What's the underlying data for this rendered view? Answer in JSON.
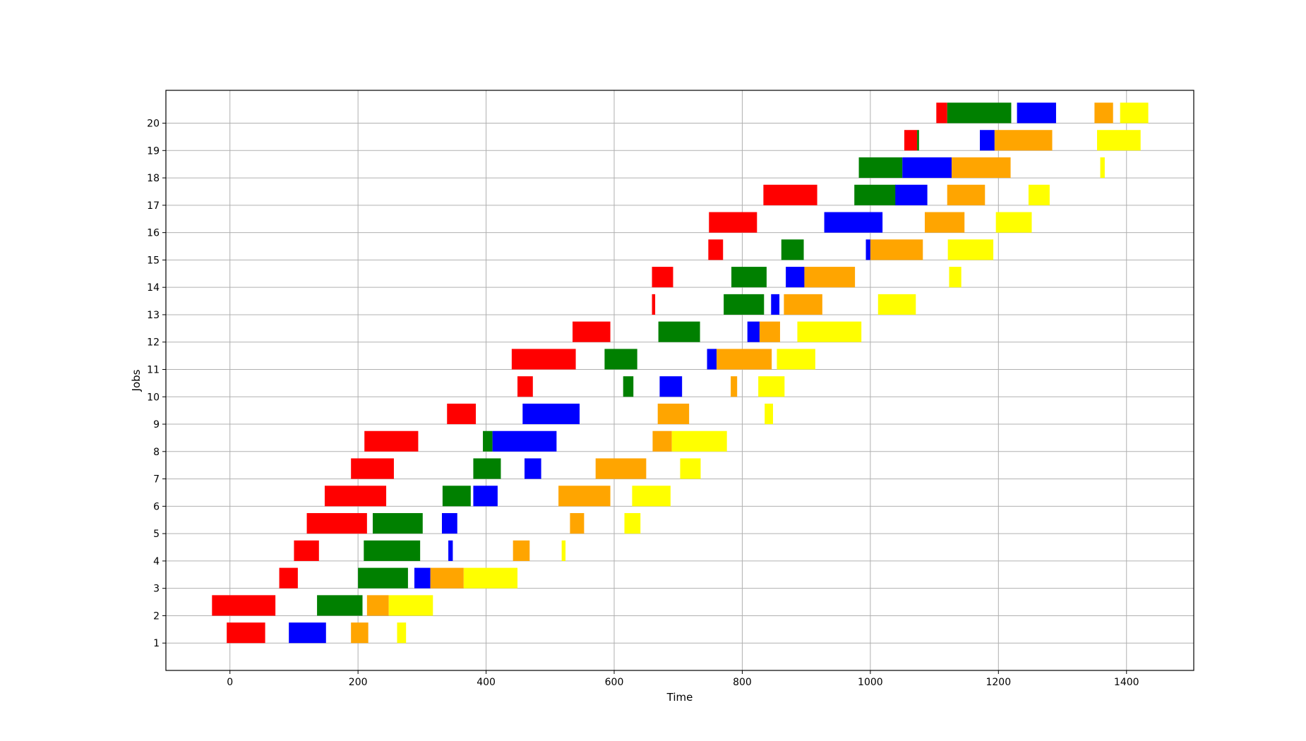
{
  "chart_data": {
    "type": "gantt",
    "title": "",
    "xlabel": "Time",
    "ylabel": "Jobs",
    "xlim": [
      -100,
      1505
    ],
    "ylim": [
      0,
      21.2
    ],
    "xticks": [
      0,
      200,
      400,
      600,
      800,
      1000,
      1200,
      1400
    ],
    "yticks": [
      1,
      2,
      3,
      4,
      5,
      6,
      7,
      8,
      9,
      10,
      11,
      12,
      13,
      14,
      15,
      16,
      17,
      18,
      19,
      20
    ],
    "grid": true,
    "legend": "none",
    "bar_height": 0.75,
    "bar_offset": 0.375,
    "colors": {
      "red": "#ff0000",
      "green": "#008000",
      "blue": "#0000ff",
      "orange": "#ffa500",
      "yellow": "#ffff00"
    },
    "series": [
      {
        "color": "red",
        "tasks": [
          {
            "job": 1,
            "start": -5,
            "end": 55
          },
          {
            "job": 2,
            "start": -28,
            "end": 71
          },
          {
            "job": 3,
            "start": 77,
            "end": 106
          },
          {
            "job": 4,
            "start": 100,
            "end": 139
          },
          {
            "job": 5,
            "start": 120,
            "end": 214
          },
          {
            "job": 6,
            "start": 148,
            "end": 244
          },
          {
            "job": 7,
            "start": 189,
            "end": 256
          },
          {
            "job": 8,
            "start": 210,
            "end": 294
          },
          {
            "job": 9,
            "start": 339,
            "end": 384
          },
          {
            "job": 10,
            "start": 449,
            "end": 473
          },
          {
            "job": 11,
            "start": 440,
            "end": 540
          },
          {
            "job": 12,
            "start": 535,
            "end": 594
          },
          {
            "job": 13,
            "start": 659,
            "end": 664
          },
          {
            "job": 14,
            "start": 659,
            "end": 692
          },
          {
            "job": 15,
            "start": 747,
            "end": 770
          },
          {
            "job": 16,
            "start": 748,
            "end": 823
          },
          {
            "job": 17,
            "start": 833,
            "end": 917
          },
          {
            "job": 19,
            "start": 1053,
            "end": 1073
          },
          {
            "job": 20,
            "start": 1103,
            "end": 1120
          }
        ]
      },
      {
        "color": "green",
        "tasks": [
          {
            "job": 2,
            "start": 136,
            "end": 207
          },
          {
            "job": 3,
            "start": 200,
            "end": 278
          },
          {
            "job": 4,
            "start": 209,
            "end": 297
          },
          {
            "job": 5,
            "start": 223,
            "end": 301
          },
          {
            "job": 6,
            "start": 332,
            "end": 376
          },
          {
            "job": 7,
            "start": 380,
            "end": 423
          },
          {
            "job": 8,
            "start": 395,
            "end": 410
          },
          {
            "job": 10,
            "start": 614,
            "end": 630
          },
          {
            "job": 11,
            "start": 585,
            "end": 636
          },
          {
            "job": 12,
            "start": 669,
            "end": 734
          },
          {
            "job": 13,
            "start": 771,
            "end": 834
          },
          {
            "job": 14,
            "start": 783,
            "end": 838
          },
          {
            "job": 15,
            "start": 861,
            "end": 896
          },
          {
            "job": 17,
            "start": 975,
            "end": 1040
          },
          {
            "job": 18,
            "start": 982,
            "end": 1050
          },
          {
            "job": 19,
            "start": 1073,
            "end": 1076
          },
          {
            "job": 20,
            "start": 1120,
            "end": 1220
          }
        ]
      },
      {
        "color": "blue",
        "tasks": [
          {
            "job": 1,
            "start": 92,
            "end": 150
          },
          {
            "job": 3,
            "start": 288,
            "end": 313
          },
          {
            "job": 4,
            "start": 341,
            "end": 348
          },
          {
            "job": 5,
            "start": 331,
            "end": 355
          },
          {
            "job": 6,
            "start": 380,
            "end": 418
          },
          {
            "job": 7,
            "start": 460,
            "end": 486
          },
          {
            "job": 8,
            "start": 410,
            "end": 510
          },
          {
            "job": 9,
            "start": 457,
            "end": 546
          },
          {
            "job": 10,
            "start": 671,
            "end": 706
          },
          {
            "job": 11,
            "start": 745,
            "end": 760
          },
          {
            "job": 12,
            "start": 808,
            "end": 827
          },
          {
            "job": 13,
            "start": 845,
            "end": 858
          },
          {
            "job": 14,
            "start": 868,
            "end": 897
          },
          {
            "job": 15,
            "start": 993,
            "end": 1000
          },
          {
            "job": 16,
            "start": 928,
            "end": 1019
          },
          {
            "job": 17,
            "start": 1039,
            "end": 1089
          },
          {
            "job": 18,
            "start": 1050,
            "end": 1127
          },
          {
            "job": 19,
            "start": 1171,
            "end": 1194
          },
          {
            "job": 20,
            "start": 1229,
            "end": 1290
          }
        ]
      },
      {
        "color": "orange",
        "tasks": [
          {
            "job": 1,
            "start": 189,
            "end": 216
          },
          {
            "job": 2,
            "start": 214,
            "end": 248
          },
          {
            "job": 3,
            "start": 313,
            "end": 365
          },
          {
            "job": 4,
            "start": 442,
            "end": 468
          },
          {
            "job": 5,
            "start": 531,
            "end": 553
          },
          {
            "job": 6,
            "start": 513,
            "end": 594
          },
          {
            "job": 7,
            "start": 571,
            "end": 650
          },
          {
            "job": 8,
            "start": 660,
            "end": 690
          },
          {
            "job": 9,
            "start": 668,
            "end": 717
          },
          {
            "job": 10,
            "start": 782,
            "end": 792
          },
          {
            "job": 11,
            "start": 760,
            "end": 846
          },
          {
            "job": 12,
            "start": 827,
            "end": 859
          },
          {
            "job": 13,
            "start": 865,
            "end": 925
          },
          {
            "job": 14,
            "start": 897,
            "end": 976
          },
          {
            "job": 15,
            "start": 1000,
            "end": 1082
          },
          {
            "job": 16,
            "start": 1085,
            "end": 1147
          },
          {
            "job": 17,
            "start": 1120,
            "end": 1179
          },
          {
            "job": 18,
            "start": 1127,
            "end": 1219
          },
          {
            "job": 19,
            "start": 1194,
            "end": 1284
          },
          {
            "job": 20,
            "start": 1350,
            "end": 1379
          }
        ]
      },
      {
        "color": "yellow",
        "tasks": [
          {
            "job": 1,
            "start": 261,
            "end": 275
          },
          {
            "job": 2,
            "start": 248,
            "end": 317
          },
          {
            "job": 3,
            "start": 365,
            "end": 449
          },
          {
            "job": 4,
            "start": 518,
            "end": 524
          },
          {
            "job": 5,
            "start": 616,
            "end": 641
          },
          {
            "job": 6,
            "start": 628,
            "end": 688
          },
          {
            "job": 7,
            "start": 703,
            "end": 735
          },
          {
            "job": 8,
            "start": 690,
            "end": 776
          },
          {
            "job": 9,
            "start": 835,
            "end": 848
          },
          {
            "job": 10,
            "start": 825,
            "end": 866
          },
          {
            "job": 11,
            "start": 854,
            "end": 914
          },
          {
            "job": 12,
            "start": 886,
            "end": 986
          },
          {
            "job": 13,
            "start": 1012,
            "end": 1071
          },
          {
            "job": 14,
            "start": 1123,
            "end": 1142
          },
          {
            "job": 15,
            "start": 1121,
            "end": 1192
          },
          {
            "job": 16,
            "start": 1196,
            "end": 1252
          },
          {
            "job": 17,
            "start": 1247,
            "end": 1280
          },
          {
            "job": 18,
            "start": 1359,
            "end": 1366
          },
          {
            "job": 19,
            "start": 1354,
            "end": 1422
          },
          {
            "job": 20,
            "start": 1390,
            "end": 1434
          }
        ]
      }
    ]
  }
}
